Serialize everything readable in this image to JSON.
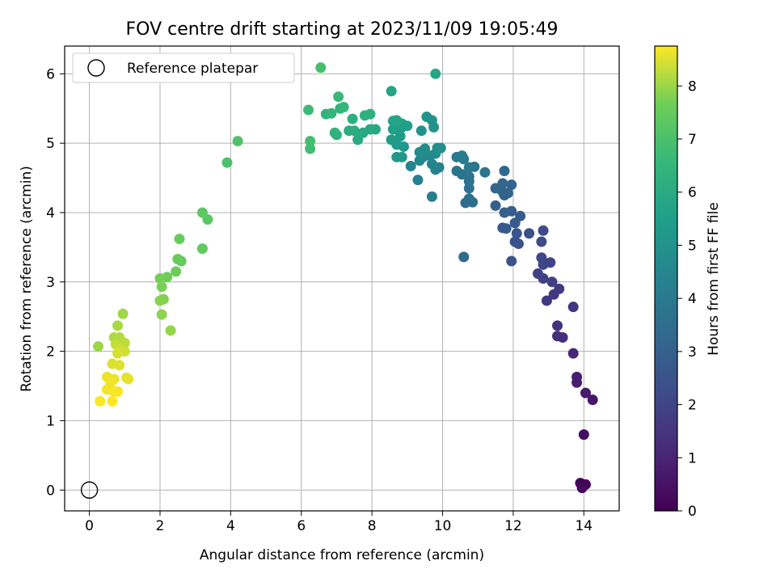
{
  "chart_data": {
    "type": "scatter",
    "title": "FOV centre drift starting at 2023/11/09 19:05:49",
    "xlabel": "Angular distance from reference (arcmin)",
    "ylabel": "Rotation from reference (arcmin)",
    "xlim": [
      -0.7,
      15.0
    ],
    "ylim": [
      -0.3,
      6.4
    ],
    "xticks": [
      0,
      2,
      4,
      6,
      8,
      10,
      12,
      14
    ],
    "yticks": [
      0,
      1,
      2,
      3,
      4,
      5,
      6
    ],
    "grid": true,
    "legend": {
      "placement": "top-left",
      "entries": [
        "Reference platepar"
      ]
    },
    "reference_point": {
      "x": 0,
      "y": 0,
      "label": "Reference platepar"
    },
    "colorbar": {
      "label": "Hours from first FF file",
      "colormap": "viridis",
      "range": [
        0,
        8.75
      ],
      "ticks": [
        0,
        1,
        2,
        3,
        4,
        5,
        6,
        7,
        8
      ]
    },
    "points": [
      [
        13.9,
        0.1,
        0.1
      ],
      [
        14.05,
        0.08,
        0.15
      ],
      [
        13.95,
        0.03,
        0.2
      ],
      [
        14.0,
        0.8,
        0.4
      ],
      [
        14.25,
        1.3,
        0.6
      ],
      [
        14.05,
        1.4,
        0.7
      ],
      [
        13.8,
        1.55,
        0.8
      ],
      [
        13.8,
        1.63,
        0.85
      ],
      [
        13.7,
        1.97,
        1.1
      ],
      [
        13.4,
        2.2,
        1.3
      ],
      [
        13.25,
        2.22,
        1.35
      ],
      [
        13.25,
        2.37,
        1.4
      ],
      [
        13.7,
        2.64,
        1.5
      ],
      [
        12.95,
        2.73,
        1.6
      ],
      [
        13.15,
        2.82,
        1.65
      ],
      [
        13.3,
        2.9,
        1.7
      ],
      [
        13.1,
        3.0,
        1.8
      ],
      [
        12.85,
        3.05,
        1.85
      ],
      [
        12.7,
        3.12,
        1.9
      ],
      [
        13.05,
        3.28,
        2.0
      ],
      [
        12.85,
        3.25,
        2.05
      ],
      [
        12.8,
        3.35,
        2.1
      ],
      [
        12.8,
        3.58,
        2.2
      ],
      [
        12.85,
        3.74,
        2.25
      ],
      [
        12.45,
        3.7,
        2.4
      ],
      [
        12.15,
        3.55,
        2.45
      ],
      [
        12.05,
        3.58,
        2.5
      ],
      [
        11.95,
        3.3,
        2.55
      ],
      [
        12.1,
        3.7,
        2.6
      ],
      [
        11.7,
        3.78,
        2.7
      ],
      [
        11.8,
        3.77,
        2.75
      ],
      [
        12.05,
        3.85,
        2.8
      ],
      [
        12.2,
        3.95,
        2.85
      ],
      [
        11.95,
        4.02,
        2.9
      ],
      [
        11.75,
        4.0,
        2.95
      ],
      [
        11.5,
        4.1,
        3.0
      ],
      [
        11.75,
        4.25,
        3.05
      ],
      [
        11.7,
        4.3,
        3.1
      ],
      [
        11.85,
        4.28,
        3.1
      ],
      [
        11.95,
        4.4,
        3.15
      ],
      [
        11.5,
        4.35,
        3.2
      ],
      [
        11.7,
        4.42,
        3.25
      ],
      [
        11.75,
        4.6,
        3.3
      ],
      [
        10.6,
        3.36,
        3.4
      ],
      [
        10.65,
        4.14,
        3.45
      ],
      [
        10.85,
        4.15,
        3.5
      ],
      [
        10.75,
        4.2,
        3.55
      ],
      [
        10.75,
        4.35,
        3.6
      ],
      [
        10.75,
        4.45,
        3.65
      ],
      [
        10.75,
        4.52,
        3.7
      ],
      [
        10.55,
        4.55,
        3.75
      ],
      [
        10.4,
        4.6,
        3.8
      ],
      [
        11.2,
        4.58,
        3.85
      ],
      [
        10.9,
        4.66,
        3.9
      ],
      [
        10.75,
        4.65,
        3.95
      ],
      [
        10.6,
        4.77,
        4.0
      ],
      [
        10.4,
        4.8,
        4.05
      ],
      [
        10.55,
        4.82,
        4.1
      ],
      [
        9.7,
        4.23,
        4.2
      ],
      [
        9.3,
        4.47,
        4.3
      ],
      [
        9.8,
        4.62,
        4.35
      ],
      [
        9.9,
        4.65,
        4.4
      ],
      [
        9.1,
        4.67,
        4.45
      ],
      [
        9.7,
        4.7,
        4.5
      ],
      [
        9.35,
        4.75,
        4.55
      ],
      [
        9.45,
        4.8,
        4.6
      ],
      [
        9.65,
        4.82,
        4.65
      ],
      [
        9.8,
        4.85,
        4.7
      ],
      [
        9.35,
        4.87,
        4.75
      ],
      [
        9.5,
        4.92,
        4.8
      ],
      [
        9.85,
        4.93,
        4.85
      ],
      [
        9.95,
        4.93,
        4.9
      ],
      [
        9.4,
        5.18,
        4.95
      ],
      [
        9.75,
        5.23,
        5.0
      ],
      [
        9.7,
        5.33,
        5.05
      ],
      [
        9.55,
        5.38,
        5.1
      ],
      [
        8.85,
        4.8,
        5.15
      ],
      [
        8.7,
        4.8,
        5.2
      ],
      [
        8.9,
        4.95,
        5.25
      ],
      [
        8.7,
        4.98,
        5.3
      ],
      [
        8.55,
        5.05,
        5.35
      ],
      [
        8.8,
        5.1,
        5.4
      ],
      [
        8.8,
        5.2,
        5.45
      ],
      [
        9.0,
        5.25,
        5.5
      ],
      [
        8.6,
        5.2,
        5.55
      ],
      [
        8.85,
        5.28,
        5.6
      ],
      [
        8.6,
        5.32,
        5.65
      ],
      [
        8.7,
        5.33,
        5.7
      ],
      [
        8.55,
        5.75,
        5.75
      ],
      [
        9.8,
        6.0,
        5.8
      ],
      [
        8.1,
        5.2,
        5.85
      ],
      [
        7.95,
        5.2,
        5.9
      ],
      [
        7.75,
        5.15,
        5.95
      ],
      [
        7.6,
        5.05,
        6.0
      ],
      [
        7.5,
        5.18,
        6.05
      ],
      [
        7.35,
        5.18,
        6.1
      ],
      [
        7.45,
        5.35,
        6.15
      ],
      [
        7.8,
        5.4,
        6.2
      ],
      [
        7.95,
        5.42,
        6.25
      ],
      [
        7.0,
        5.12,
        6.3
      ],
      [
        6.95,
        5.15,
        6.35
      ],
      [
        6.7,
        5.42,
        6.4
      ],
      [
        6.85,
        5.43,
        6.45
      ],
      [
        7.1,
        5.5,
        6.5
      ],
      [
        7.2,
        5.52,
        6.55
      ],
      [
        7.05,
        5.67,
        6.6
      ],
      [
        6.2,
        5.48,
        6.7
      ],
      [
        6.25,
        4.92,
        6.8
      ],
      [
        6.25,
        5.03,
        6.85
      ],
      [
        6.55,
        6.09,
        6.9
      ],
      [
        3.9,
        4.72,
        7.0
      ],
      [
        4.2,
        5.03,
        7.1
      ],
      [
        3.35,
        3.9,
        7.3
      ],
      [
        3.2,
        4.0,
        7.35
      ],
      [
        3.2,
        3.48,
        7.4
      ],
      [
        2.6,
        3.3,
        7.45
      ],
      [
        2.55,
        3.62,
        7.5
      ],
      [
        2.5,
        3.33,
        7.55
      ],
      [
        2.45,
        3.15,
        7.6
      ],
      [
        2.2,
        3.07,
        7.65
      ],
      [
        2.0,
        3.05,
        7.7
      ],
      [
        2.05,
        2.93,
        7.75
      ],
      [
        2.1,
        2.75,
        7.8
      ],
      [
        2.0,
        2.73,
        7.85
      ],
      [
        2.05,
        2.53,
        7.9
      ],
      [
        2.3,
        2.3,
        7.95
      ],
      [
        0.25,
        2.07,
        8.0
      ],
      [
        0.95,
        2.54,
        8.05
      ],
      [
        0.8,
        2.37,
        8.1
      ],
      [
        0.7,
        2.2,
        8.15
      ],
      [
        0.85,
        2.2,
        8.2
      ],
      [
        1.0,
        2.12,
        8.25
      ],
      [
        0.75,
        2.1,
        8.3
      ],
      [
        0.85,
        2.05,
        8.35
      ],
      [
        1.0,
        2.0,
        8.4
      ],
      [
        0.8,
        1.97,
        8.45
      ],
      [
        0.65,
        1.82,
        8.5
      ],
      [
        0.85,
        1.8,
        8.52
      ],
      [
        1.1,
        1.6,
        8.55
      ],
      [
        1.05,
        1.62,
        8.57
      ],
      [
        0.5,
        1.63,
        8.6
      ],
      [
        0.7,
        1.6,
        8.62
      ],
      [
        0.6,
        1.55,
        8.65
      ],
      [
        0.5,
        1.45,
        8.67
      ],
      [
        0.7,
        1.42,
        8.7
      ],
      [
        0.8,
        1.42,
        8.72
      ],
      [
        0.3,
        1.28,
        8.73
      ],
      [
        0.65,
        1.28,
        8.75
      ]
    ]
  }
}
